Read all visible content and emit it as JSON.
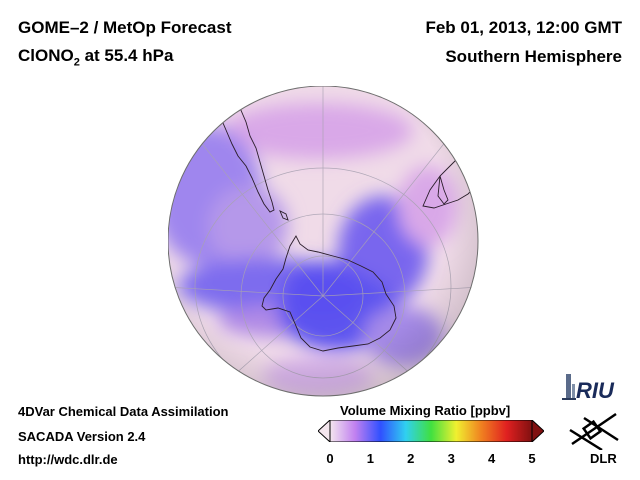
{
  "header": {
    "instrument": "GOME–2 / MetOp Forecast",
    "species_prefix": "ClONO",
    "species_subscript": "2",
    "species_suffix": " at 55.4 hPa",
    "datetime": "Feb 01, 2013, 12:00 GMT",
    "hemisphere": "Southern Hemisphere"
  },
  "footer": {
    "line1": "4DVar Chemical Data Assimilation",
    "line2": "SACADA Version 2.4",
    "url": "http://wdc.dlr.de"
  },
  "colorbar": {
    "title": "Volume Mixing Ratio [ppbv]",
    "min": 0,
    "max": 5,
    "ticks": [
      "0",
      "1",
      "2",
      "3",
      "4",
      "5"
    ],
    "colors": [
      "#f4e6ee",
      "#c080f0",
      "#3050ff",
      "#30d0f0",
      "#40e040",
      "#f0f030",
      "#f08020",
      "#e02020",
      "#801010"
    ]
  },
  "logos": {
    "riu": "RIU",
    "dlr": "DLR"
  },
  "map": {
    "projection": "orthographic, centered on South Pole",
    "fill_colors": {
      "pink": "#f0dbe8",
      "light_purple": "#d9a8e8",
      "purple": "#b08ae6",
      "blue": "#5d55ef"
    }
  }
}
